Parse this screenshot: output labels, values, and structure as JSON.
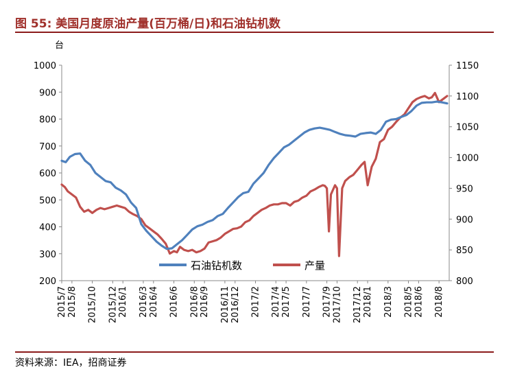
{
  "figure": {
    "title": "图 55:  美国月度原油产量(百万桶/日)和石油钻机数",
    "source": "资料来源：IEA，招商证券"
  },
  "chart_data": {
    "type": "line",
    "title": "美国月度原油产量(百万桶/日)和石油钻机数",
    "y_left_unit": "台",
    "y_left": {
      "range": [
        200,
        1000
      ],
      "ticks": [
        200,
        300,
        400,
        500,
        600,
        700,
        800,
        900,
        1000
      ]
    },
    "y_right": {
      "range": [
        800,
        1150
      ],
      "ticks": [
        800,
        850,
        900,
        950,
        1000,
        1050,
        1100,
        1150
      ]
    },
    "x_range": [
      0,
      38
    ],
    "x_ticks": [
      "2015/7",
      "2015/8",
      "2015/10",
      "2015/12",
      "2016/1",
      "2016/3",
      "2016/4",
      "2016/6",
      "2016/8",
      "2016/9",
      "2016/11",
      "2016/12",
      "2017/2",
      "2017/4",
      "2017/5",
      "2017/7",
      "2017/9",
      "2017/10",
      "2017/12",
      "2018/1",
      "2018/3",
      "2018/5",
      "2018/6",
      "2018/8"
    ],
    "x_tick_pos": [
      0,
      1,
      3,
      5,
      6,
      8,
      9,
      11,
      13,
      14,
      16,
      17,
      19,
      21,
      22,
      24,
      26,
      27,
      29,
      30,
      32,
      34,
      35,
      37
    ],
    "legend_position": "bottom-center",
    "grid": false,
    "series": [
      {
        "name": "石油钻机数",
        "axis": "left",
        "color": "#4f81bd",
        "x": [
          0,
          0.4,
          0.8,
          1.3,
          1.8,
          2.3,
          2.8,
          3.3,
          3.8,
          4.3,
          4.8,
          5.3,
          5.8,
          6.3,
          6.8,
          7.3,
          7.8,
          8.3,
          8.8,
          9.3,
          9.8,
          10.3,
          10.8,
          11.3,
          11.8,
          12.3,
          12.8,
          13.3,
          13.8,
          14.3,
          14.8,
          15.3,
          15.8,
          16.3,
          16.8,
          17.3,
          17.8,
          18.3,
          18.8,
          19.3,
          19.8,
          20.3,
          20.8,
          21.3,
          21.8,
          22.3,
          22.8,
          23.3,
          23.8,
          24.3,
          24.8,
          25.3,
          25.8,
          26.3,
          26.8,
          27.3,
          27.8,
          28.3,
          28.8,
          29.3,
          29.8,
          30.3,
          30.8,
          31.3,
          31.8,
          32.3,
          32.8,
          33.3,
          33.8,
          34.3,
          34.8,
          35.3,
          35.8,
          36.3,
          36.8,
          37.3,
          37.8
        ],
        "values": [
          645,
          640,
          660,
          670,
          672,
          645,
          630,
          600,
          585,
          570,
          565,
          545,
          535,
          520,
          490,
          470,
          410,
          385,
          365,
          345,
          330,
          318,
          320,
          335,
          350,
          370,
          390,
          402,
          408,
          418,
          425,
          440,
          448,
          470,
          490,
          510,
          525,
          530,
          560,
          580,
          600,
          630,
          655,
          675,
          695,
          705,
          720,
          735,
          750,
          760,
          765,
          768,
          764,
          760,
          752,
          745,
          740,
          738,
          735,
          745,
          748,
          750,
          745,
          760,
          790,
          798,
          800,
          808,
          815,
          830,
          850,
          860,
          862,
          862,
          865,
          862,
          858
        ]
      },
      {
        "name": "产量",
        "axis": "right",
        "color": "#c0504d",
        "x": [
          0,
          0.3,
          0.6,
          1.0,
          1.4,
          1.8,
          2.2,
          2.6,
          3.0,
          3.4,
          3.8,
          4.2,
          4.6,
          5.0,
          5.4,
          5.8,
          6.2,
          6.6,
          7.0,
          7.4,
          7.8,
          8.2,
          8.6,
          9.0,
          9.4,
          9.8,
          10.2,
          10.6,
          11.0,
          11.3,
          11.6,
          12.0,
          12.4,
          12.8,
          13.2,
          13.6,
          14.0,
          14.4,
          14.8,
          15.2,
          15.6,
          16.0,
          16.4,
          16.8,
          17.2,
          17.6,
          18.0,
          18.4,
          18.8,
          19.2,
          19.6,
          20.0,
          20.4,
          20.8,
          21.2,
          21.6,
          22.0,
          22.4,
          22.8,
          23.2,
          23.6,
          24.0,
          24.4,
          24.8,
          25.2,
          25.6,
          25.8,
          26.0,
          26.2,
          26.4,
          26.8,
          27.0,
          27.2,
          27.5,
          27.8,
          28.2,
          28.6,
          29.0,
          29.4,
          29.7,
          30.0,
          30.4,
          30.8,
          31.2,
          31.6,
          32.0,
          32.4,
          32.8,
          33.2,
          33.6,
          34.0,
          34.4,
          34.8,
          35.2,
          35.6,
          36.0,
          36.3,
          36.6,
          37.0,
          37.4,
          37.8
        ],
        "values": [
          956,
          952,
          945,
          940,
          935,
          920,
          912,
          915,
          910,
          915,
          918,
          916,
          918,
          920,
          922,
          920,
          918,
          912,
          908,
          905,
          900,
          890,
          885,
          880,
          875,
          868,
          860,
          844,
          848,
          846,
          855,
          850,
          848,
          850,
          846,
          848,
          852,
          862,
          864,
          866,
          870,
          876,
          880,
          884,
          885,
          888,
          895,
          898,
          905,
          910,
          915,
          918,
          922,
          924,
          924,
          926,
          926,
          922,
          928,
          930,
          935,
          938,
          945,
          948,
          952,
          955,
          954,
          950,
          880,
          940,
          955,
          950,
          840,
          950,
          962,
          968,
          972,
          980,
          988,
          993,
          955,
          985,
          998,
          1025,
          1030,
          1045,
          1050,
          1058,
          1065,
          1070,
          1080,
          1090,
          1095,
          1098,
          1100,
          1096,
          1098,
          1105,
          1090,
          1095,
          1100
        ]
      }
    ]
  }
}
